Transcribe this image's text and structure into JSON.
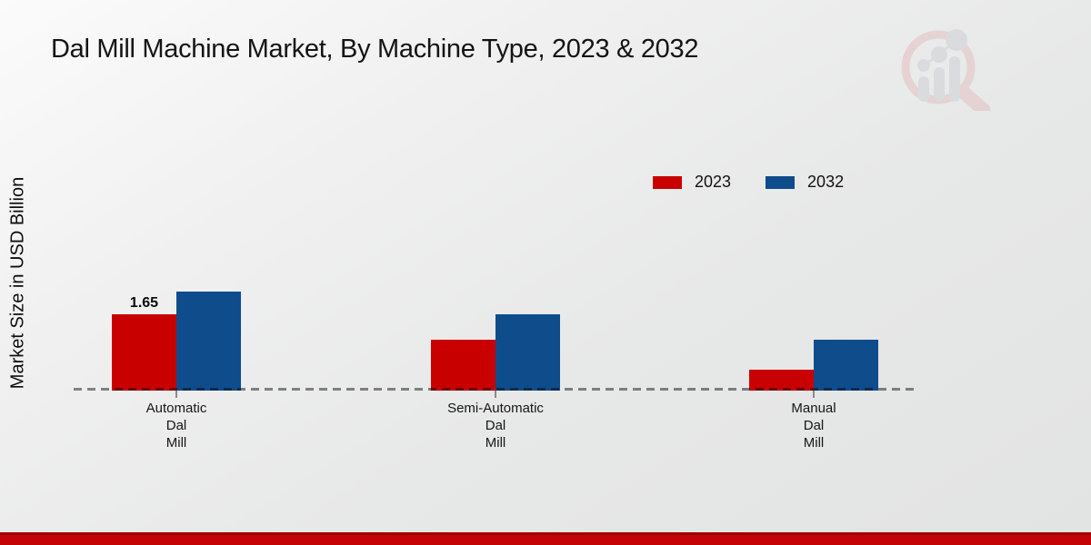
{
  "title": "Dal Mill Machine Market, By Machine Type, 2023 & 2032",
  "y_axis_label": "Market Size in USD Billion",
  "colors": {
    "series_2023": "#c80000",
    "series_2032": "#0f4c8c",
    "footer_strip": "#c40404",
    "title_text": "#141414"
  },
  "chart_data": {
    "type": "bar",
    "title": "Dal Mill Machine Market, By Machine Type, 2023 & 2032",
    "xlabel": "",
    "ylabel": "Market Size in USD Billion",
    "categories": [
      "Automatic Dal Mill",
      "Semi-Automatic Dal Mill",
      "Manual Dal Mill"
    ],
    "categories_multiline": [
      [
        "Automatic",
        "Dal",
        "Mill"
      ],
      [
        "Semi-Automatic",
        "Dal",
        "Mill"
      ],
      [
        "Manual",
        "Dal",
        "Mill"
      ]
    ],
    "series": [
      {
        "name": "2023",
        "color": "#c80000",
        "values": [
          1.65,
          1.1,
          0.45
        ]
      },
      {
        "name": "2032",
        "color": "#0f4c8c",
        "values": [
          2.15,
          1.65,
          1.1
        ]
      }
    ],
    "data_labels": [
      {
        "series_index": 0,
        "category_index": 0,
        "text": "1.65"
      }
    ],
    "ylim": [
      0,
      2.6
    ],
    "grid": false,
    "axis_line_style": "dashed-baseline",
    "legend_position": "top-right-inside"
  },
  "branding": {
    "watermark": "market-research-future-logo"
  }
}
